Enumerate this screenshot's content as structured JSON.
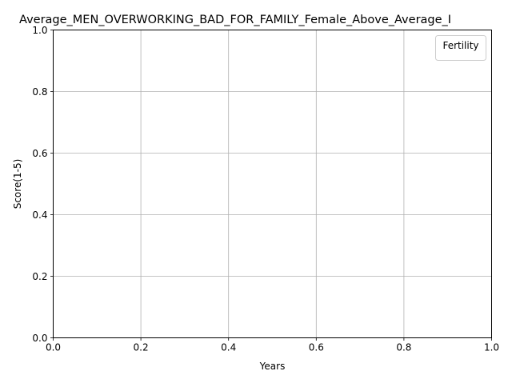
{
  "chart_data": {
    "type": "line",
    "title": "Average_MEN_OVERWORKING_BAD_FOR_FAMILY_Female_Above_Average_I",
    "xlabel": "Years",
    "ylabel": "Score(1-5)",
    "xlim": [
      0.0,
      1.0
    ],
    "ylim": [
      0.0,
      1.0
    ],
    "x_ticks": [
      "0.0",
      "0.2",
      "0.4",
      "0.6",
      "0.8",
      "1.0"
    ],
    "y_ticks": [
      "0.0",
      "0.2",
      "0.4",
      "0.6",
      "0.8",
      "1.0"
    ],
    "grid": true,
    "legend": {
      "title": "Fertility",
      "placement": "top-right",
      "entries": []
    },
    "series": []
  }
}
